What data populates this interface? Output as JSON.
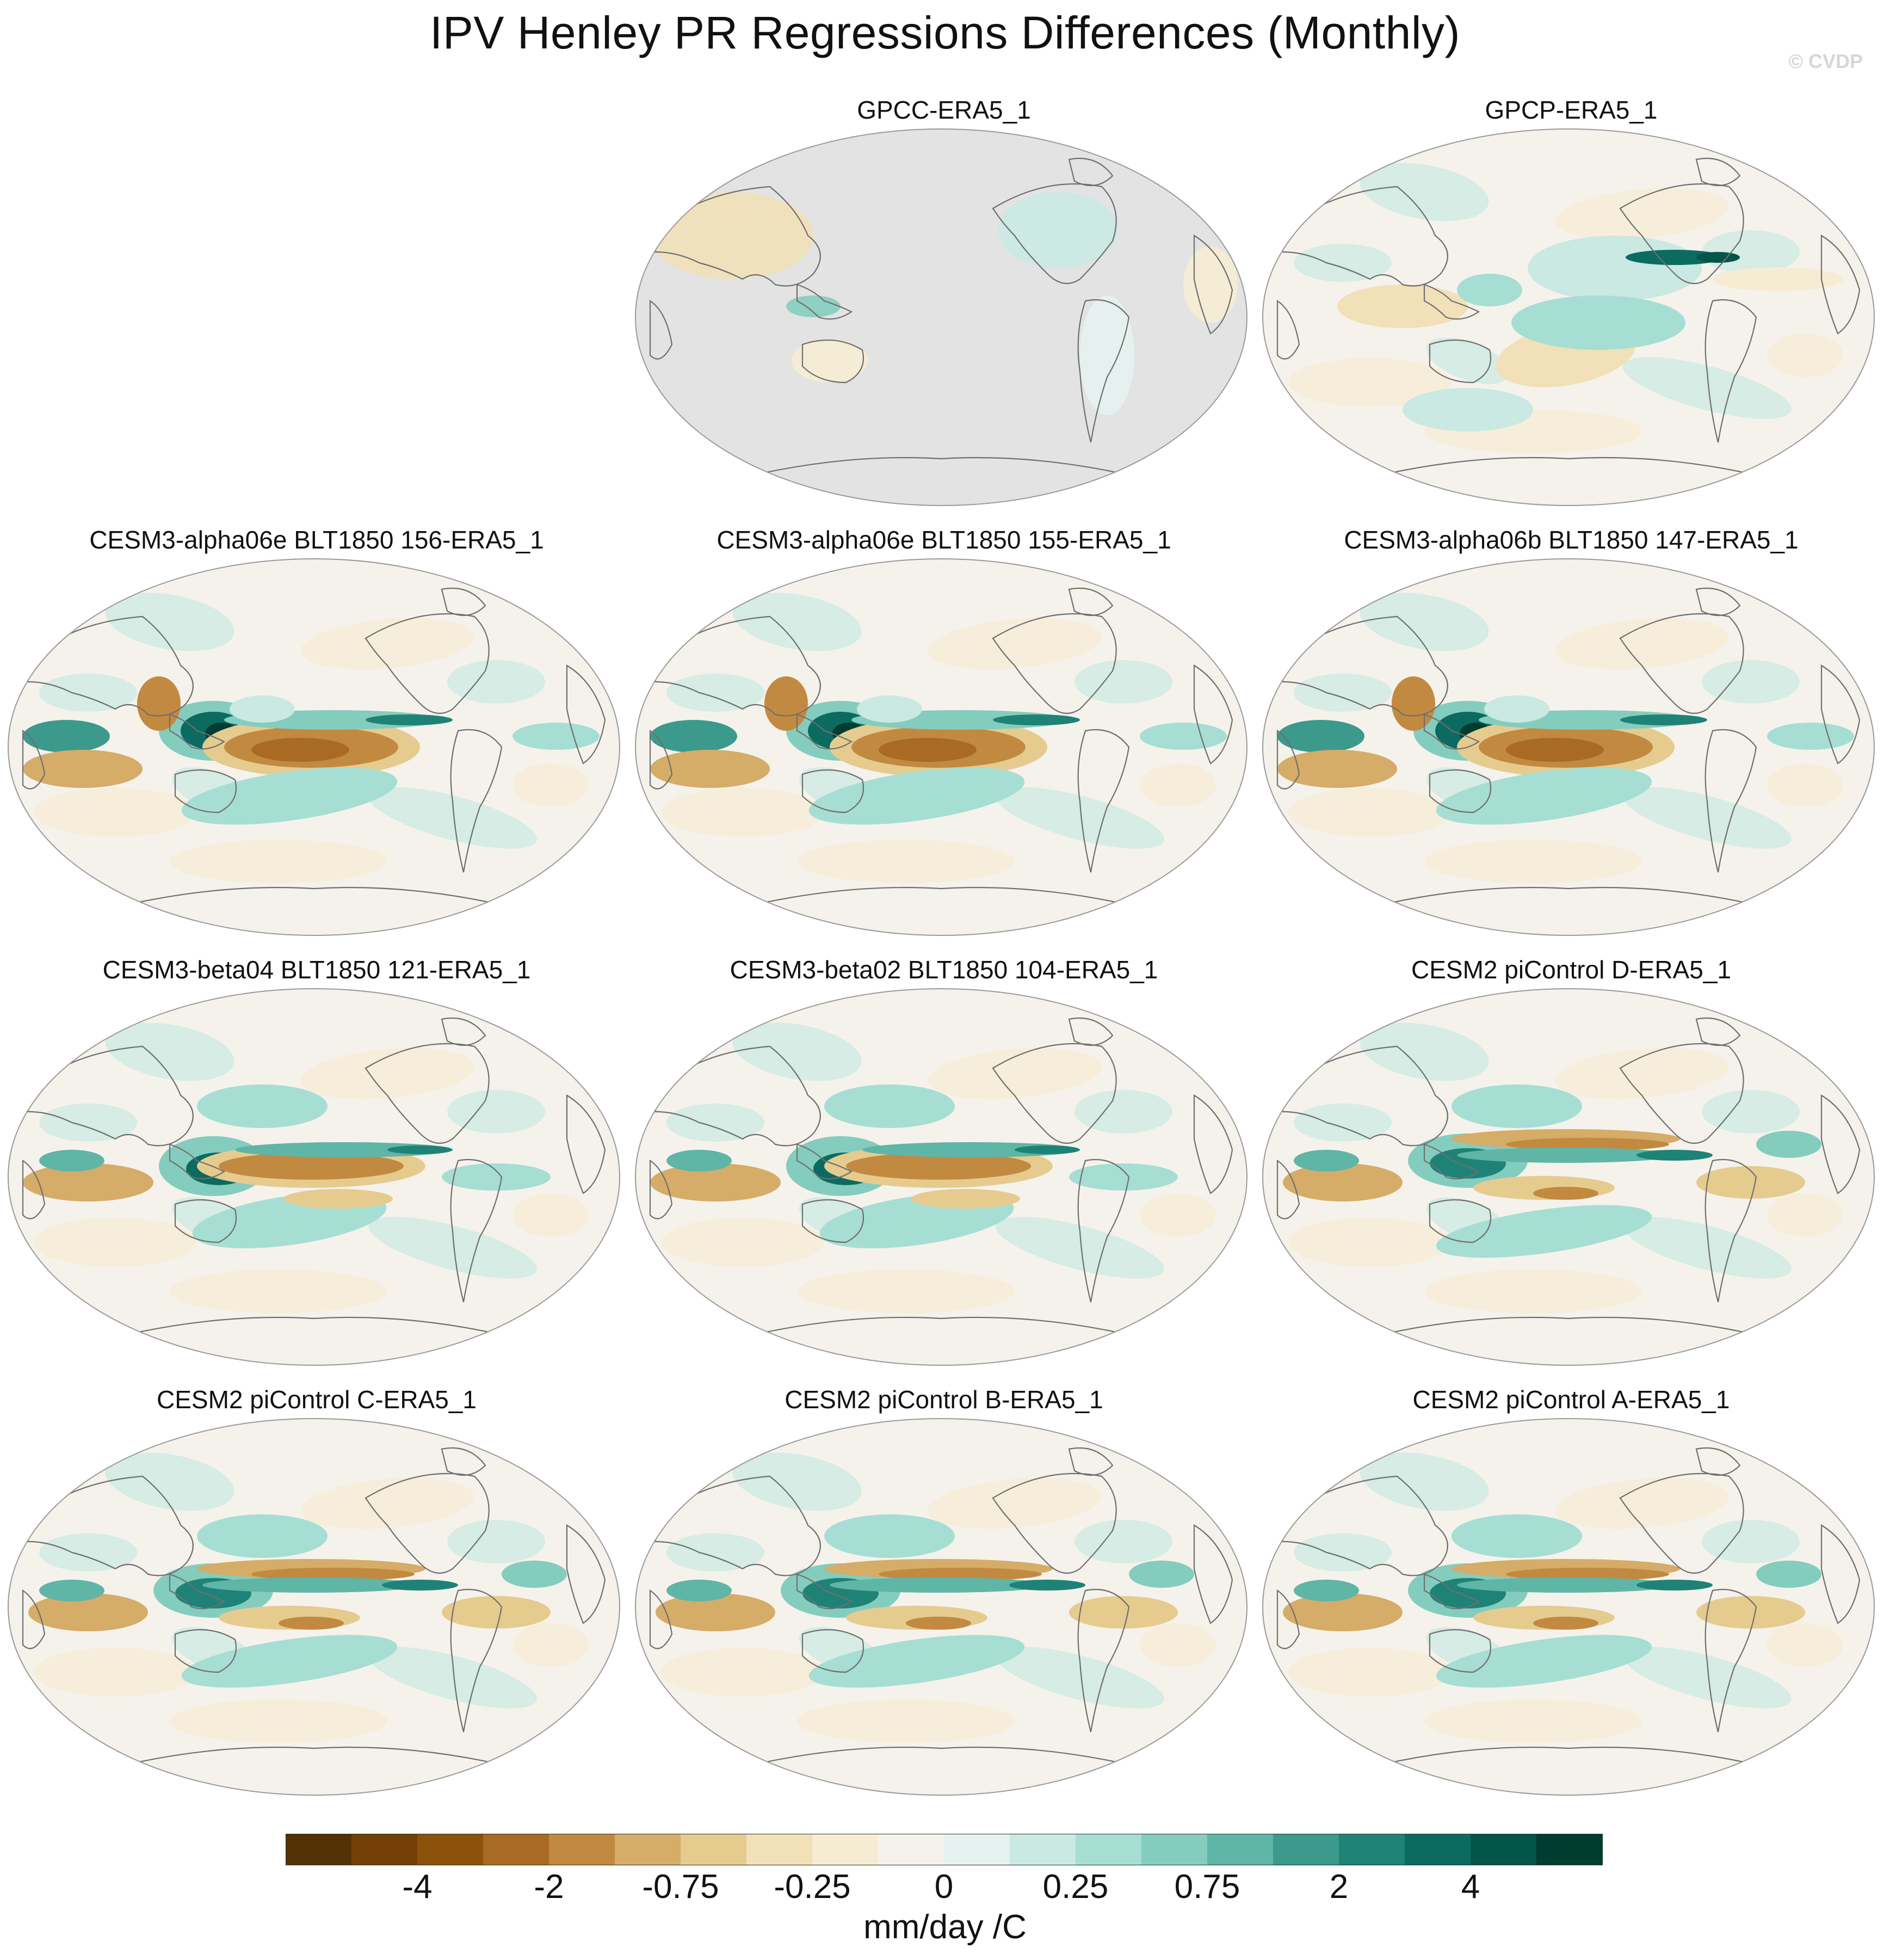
{
  "title": "IPV Henley PR Regressions Differences (Monthly)",
  "credit": "© CVDP",
  "panels": [
    {
      "title": "GPCC-ERA5_1",
      "ocean_missing": true,
      "variant": 0
    },
    {
      "title": "GPCP-ERA5_1",
      "ocean_missing": false,
      "variant": 1
    },
    {
      "title": "CESM3-alpha06e BLT1850 156-ERA5_1",
      "ocean_missing": false,
      "variant": 2
    },
    {
      "title": "CESM3-alpha06e BLT1850 155-ERA5_1",
      "ocean_missing": false,
      "variant": 2
    },
    {
      "title": "CESM3-alpha06b BLT1850 147-ERA5_1",
      "ocean_missing": false,
      "variant": 2
    },
    {
      "title": "CESM3-beta04 BLT1850 121-ERA5_1",
      "ocean_missing": false,
      "variant": 3
    },
    {
      "title": "CESM3-beta02 BLT1850 104-ERA5_1",
      "ocean_missing": false,
      "variant": 3
    },
    {
      "title": "CESM2 piControl D-ERA5_1",
      "ocean_missing": false,
      "variant": 4
    },
    {
      "title": "CESM2 piControl C-ERA5_1",
      "ocean_missing": false,
      "variant": 4
    },
    {
      "title": "CESM2 piControl B-ERA5_1",
      "ocean_missing": false,
      "variant": 4
    },
    {
      "title": "CESM2 piControl A-ERA5_1",
      "ocean_missing": false,
      "variant": 4
    }
  ],
  "colorbar": {
    "units": "mm/day /C",
    "colors": [
      "#543005",
      "#744007",
      "#8c510a",
      "#a96a24",
      "#c28a40",
      "#d5ac68",
      "#e6cb8f",
      "#f1e0b8",
      "#f6ecd3",
      "#f5f2ec",
      "#e6f2ef",
      "#c9e9e2",
      "#a6ded3",
      "#84cdbe",
      "#5fb5a6",
      "#3b9a8c",
      "#1f8276",
      "#0b6b61",
      "#035549",
      "#003c30"
    ],
    "ticks": [
      {
        "label": "-4",
        "index": 2
      },
      {
        "label": "-2",
        "index": 4
      },
      {
        "label": "-0.75",
        "index": 6
      },
      {
        "label": "-0.25",
        "index": 8
      },
      {
        "label": "0",
        "index": 10
      },
      {
        "label": "0.25",
        "index": 12
      },
      {
        "label": "0.75",
        "index": 14
      },
      {
        "label": "2",
        "index": 16
      },
      {
        "label": "4",
        "index": 18
      }
    ]
  }
}
